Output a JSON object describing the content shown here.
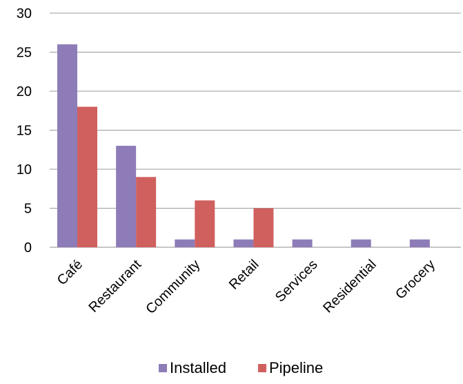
{
  "chart_data": {
    "type": "bar",
    "title": "",
    "xlabel": "",
    "ylabel": "",
    "categories": [
      "Café",
      "Restaurant",
      "Community",
      "Retail",
      "Services",
      "Residential",
      "Grocery"
    ],
    "series": [
      {
        "name": "Installed",
        "color": "#8e7cb8",
        "values": [
          26,
          13,
          1,
          1,
          1,
          1,
          1
        ]
      },
      {
        "name": "Pipeline",
        "color": "#d0605e",
        "values": [
          18,
          9,
          6,
          5,
          0,
          0,
          0
        ]
      }
    ],
    "ylim": [
      0,
      30
    ],
    "yticks": [
      0,
      5,
      10,
      15,
      20,
      25,
      30
    ],
    "grid": true,
    "legend_position": "bottom"
  }
}
